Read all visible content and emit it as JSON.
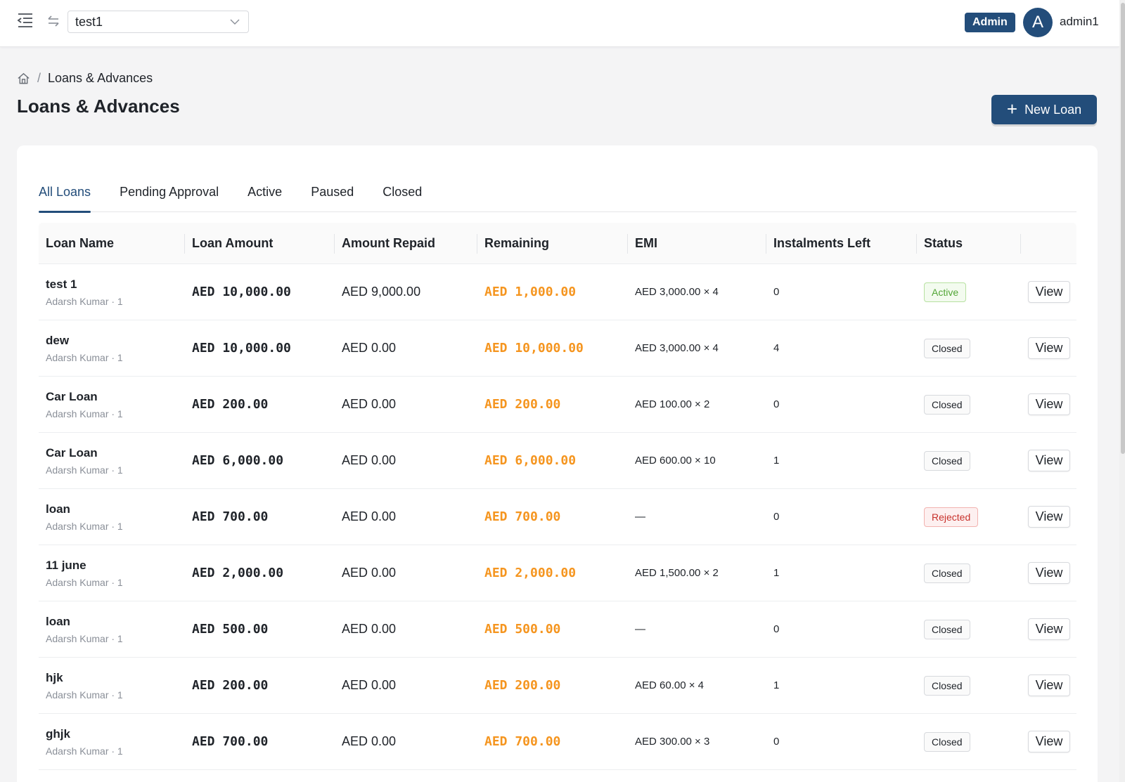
{
  "topbar": {
    "org_selector": {
      "value": "test1"
    },
    "role_badge": "Admin",
    "avatar_initial": "A",
    "username": "admin1"
  },
  "breadcrumb": {
    "current": "Loans & Advances"
  },
  "page": {
    "title": "Loans & Advances",
    "new_button_label": "New Loan"
  },
  "tabs": [
    {
      "label": "All Loans",
      "active": true
    },
    {
      "label": "Pending Approval",
      "active": false
    },
    {
      "label": "Active",
      "active": false
    },
    {
      "label": "Paused",
      "active": false
    },
    {
      "label": "Closed",
      "active": false
    }
  ],
  "table": {
    "columns": [
      "Loan Name",
      "Loan Amount",
      "Amount Repaid",
      "Remaining",
      "EMI",
      "Instalments Left",
      "Status",
      ""
    ],
    "view_label": "View",
    "rows": [
      {
        "name": "test 1",
        "sub": "Adarsh Kumar · 1",
        "amount": "AED 10,000.00",
        "repaid": "AED 9,000.00",
        "remaining": "AED 1,000.00",
        "emi": "AED 3,000.00 × 4",
        "instalments_left": "0",
        "status": "Active"
      },
      {
        "name": "dew",
        "sub": "Adarsh Kumar · 1",
        "amount": "AED 10,000.00",
        "repaid": "AED 0.00",
        "remaining": "AED 10,000.00",
        "emi": "AED 3,000.00 × 4",
        "instalments_left": "4",
        "status": "Closed"
      },
      {
        "name": "Car Loan",
        "sub": "Adarsh Kumar · 1",
        "amount": "AED 200.00",
        "repaid": "AED 0.00",
        "remaining": "AED 200.00",
        "emi": "AED 100.00 × 2",
        "instalments_left": "0",
        "status": "Closed"
      },
      {
        "name": "Car Loan",
        "sub": "Adarsh Kumar · 1",
        "amount": "AED 6,000.00",
        "repaid": "AED 0.00",
        "remaining": "AED 6,000.00",
        "emi": "AED 600.00 × 10",
        "instalments_left": "1",
        "status": "Closed"
      },
      {
        "name": "loan",
        "sub": "Adarsh Kumar · 1",
        "amount": "AED 700.00",
        "repaid": "AED 0.00",
        "remaining": "AED 700.00",
        "emi": "—",
        "instalments_left": "0",
        "status": "Rejected"
      },
      {
        "name": "11 june",
        "sub": "Adarsh Kumar · 1",
        "amount": "AED 2,000.00",
        "repaid": "AED 0.00",
        "remaining": "AED 2,000.00",
        "emi": "AED 1,500.00 × 2",
        "instalments_left": "1",
        "status": "Closed"
      },
      {
        "name": "loan",
        "sub": "Adarsh Kumar · 1",
        "amount": "AED 500.00",
        "repaid": "AED 0.00",
        "remaining": "AED 500.00",
        "emi": "—",
        "instalments_left": "0",
        "status": "Closed"
      },
      {
        "name": "hjk",
        "sub": "Adarsh Kumar · 1",
        "amount": "AED 200.00",
        "repaid": "AED 0.00",
        "remaining": "AED 200.00",
        "emi": "AED 60.00 × 4",
        "instalments_left": "1",
        "status": "Closed"
      },
      {
        "name": "ghjk",
        "sub": "Adarsh Kumar · 1",
        "amount": "AED 700.00",
        "repaid": "AED 0.00",
        "remaining": "AED 700.00",
        "emi": "AED 300.00 × 3",
        "instalments_left": "0",
        "status": "Closed"
      }
    ]
  },
  "colors": {
    "brand": "#234d7a",
    "remaining_amount": "#f5951f",
    "status_active": "#52a636",
    "status_rejected": "#c8322c"
  }
}
